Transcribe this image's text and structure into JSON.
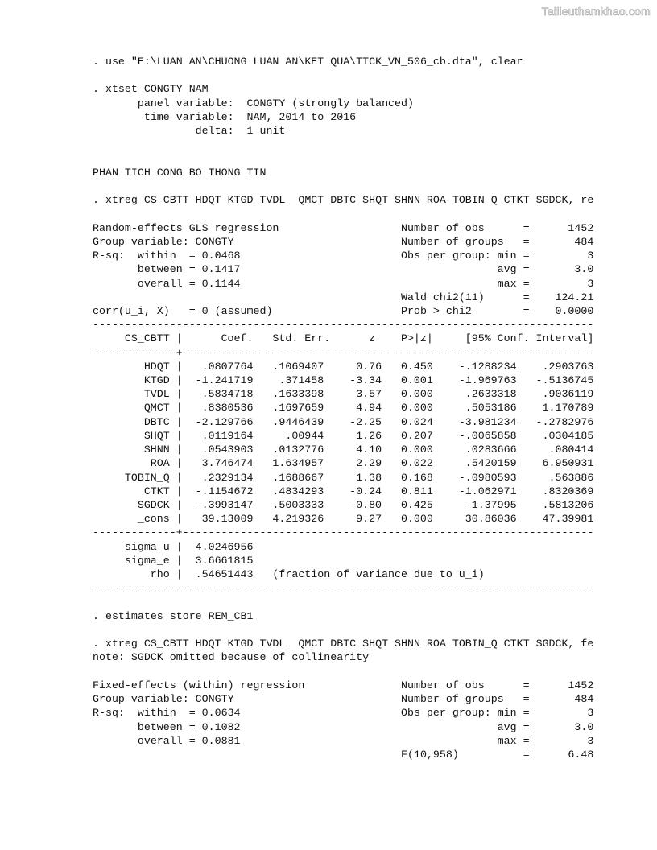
{
  "watermark": "Tailieuthamkhao.com",
  "cmd_use": ". use \"E:\\LUAN AN\\CHUONG LUAN AN\\KET QUA\\TTCK_VN_506_cb.dta\", clear",
  "cmd_xtset": ". xtset CONGTY NAM",
  "xtset": {
    "panel": "       panel variable:  CONGTY (strongly balanced)",
    "time": "        time variable:  NAM, 2014 to 2016",
    "delta": "                delta:  1 unit"
  },
  "section_title": "PHAN TICH CONG BO THONG TIN",
  "cmd_re": ". xtreg CS_CBTT HDQT KTGD TVDL  QMCT DBTC SHQT SHNN ROA TOBIN_Q CTKT SGDCK, re",
  "re_header": {
    "left": [
      "Random-effects GLS regression",
      "Group variable: CONGTY",
      "R-sq:  within  = 0.0468",
      "       between = 0.1417",
      "       overall = 0.1144",
      "",
      "corr(u_i, X)   = 0 (assumed)"
    ],
    "labels": [
      "Number of obs",
      "Number of groups",
      "Obs per group: min",
      "avg",
      "max",
      "Wald chi2(11)",
      "Prob > chi2"
    ],
    "values": [
      "1452",
      "484",
      "3",
      "3.0",
      "3",
      "124.21",
      "0.0000"
    ]
  },
  "re_table": {
    "columns": [
      "CS_CBTT",
      "Coef.",
      "Std. Err.",
      "z",
      "P>|z|",
      "[95% Conf.",
      "Interval]"
    ],
    "rows": [
      [
        "HDQT",
        ".0807764",
        ".1069407",
        "0.76",
        "0.450",
        "-.1288234",
        ".2903763"
      ],
      [
        "KTGD",
        "-1.241719",
        ".371458",
        "-3.34",
        "0.001",
        "-1.969763",
        "-.5136745"
      ],
      [
        "TVDL",
        ".5834718",
        ".1633398",
        "3.57",
        "0.000",
        ".2633318",
        ".9036119"
      ],
      [
        "QMCT",
        ".8380536",
        ".1697659",
        "4.94",
        "0.000",
        ".5053186",
        "1.170789"
      ],
      [
        "DBTC",
        "-2.129766",
        ".9446439",
        "-2.25",
        "0.024",
        "-3.981234",
        "-.2782976"
      ],
      [
        "SHQT",
        ".0119164",
        ".00944",
        "1.26",
        "0.207",
        "-.0065858",
        ".0304185"
      ],
      [
        "SHNN",
        ".0543903",
        ".0132776",
        "4.10",
        "0.000",
        ".0283666",
        ".080414"
      ],
      [
        "ROA",
        "3.746474",
        "1.634957",
        "2.29",
        "0.022",
        ".5420159",
        "6.950931"
      ],
      [
        "TOBIN_Q",
        ".2329134",
        ".1688667",
        "1.38",
        "0.168",
        "-.0980593",
        ".563886"
      ],
      [
        "CTKT",
        "-.1154672",
        ".4834293",
        "-0.24",
        "0.811",
        "-1.062971",
        ".8320369"
      ],
      [
        "SGDCK",
        "-.3993147",
        ".5003333",
        "-0.80",
        "0.425",
        "-1.37995",
        ".5813206"
      ],
      [
        "_cons",
        "39.13009",
        "4.219326",
        "9.27",
        "0.000",
        "30.86036",
        "47.39981"
      ]
    ],
    "sigma": [
      [
        "sigma_u",
        "4.0246956",
        ""
      ],
      [
        "sigma_e",
        "3.6661815",
        ""
      ],
      [
        "rho",
        ".54651443",
        "   (fraction of variance due to u_i)"
      ]
    ]
  },
  "cmd_store": ". estimates store REM_CB1",
  "cmd_fe": ". xtreg CS_CBTT HDQT KTGD TVDL  QMCT DBTC SHQT SHNN ROA TOBIN_Q CTKT SGDCK, fe",
  "fe_note": "note: SGDCK omitted because of collinearity",
  "fe_header": {
    "left": [
      "Fixed-effects (within) regression",
      "Group variable: CONGTY",
      "R-sq:  within  = 0.0634",
      "       between = 0.1082",
      "       overall = 0.0881",
      ""
    ],
    "labels": [
      "Number of obs",
      "Number of groups",
      "Obs per group: min",
      "avg",
      "max",
      "F(10,958)"
    ],
    "values": [
      "1452",
      "484",
      "3",
      "3.0",
      "3",
      "6.48"
    ]
  }
}
